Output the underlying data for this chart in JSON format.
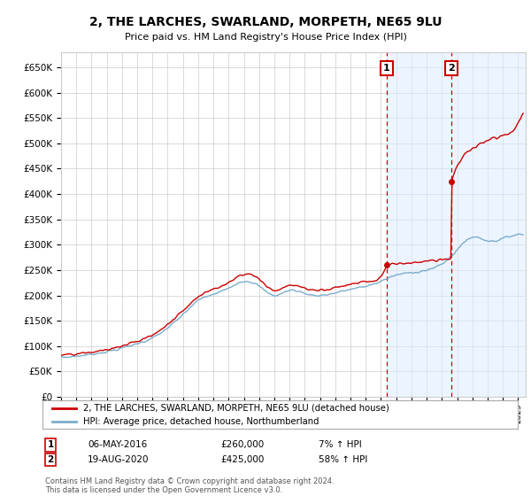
{
  "title": "2, THE LARCHES, SWARLAND, MORPETH, NE65 9LU",
  "subtitle": "Price paid vs. HM Land Registry's House Price Index (HPI)",
  "yticks": [
    0,
    50000,
    100000,
    150000,
    200000,
    250000,
    300000,
    350000,
    400000,
    450000,
    500000,
    550000,
    600000,
    650000
  ],
  "ylim": [
    0,
    680000
  ],
  "xlim_start": 1995.0,
  "xlim_end": 2025.5,
  "red_color": "#cc0000",
  "blue_color": "#7aadcb",
  "sale1_x": 2016.37,
  "sale1_y": 260000,
  "sale1_label": "1",
  "sale1_date": "06-MAY-2016",
  "sale1_price": "£260,000",
  "sale1_hpi": "7% ↑ HPI",
  "sale2_x": 2020.63,
  "sale2_y": 425000,
  "sale2_label": "2",
  "sale2_date": "19-AUG-2020",
  "sale2_price": "£425,000",
  "sale2_hpi": "58% ↑ HPI",
  "legend_line1": "2, THE LARCHES, SWARLAND, MORPETH, NE65 9LU (detached house)",
  "legend_line2": "HPI: Average price, detached house, Northumberland",
  "footnote": "Contains HM Land Registry data © Crown copyright and database right 2024.\nThis data is licensed under the Open Government Licence v3.0.",
  "background_color": "#ffffff",
  "grid_color": "#cccccc",
  "shade_color": "#ddeeff"
}
